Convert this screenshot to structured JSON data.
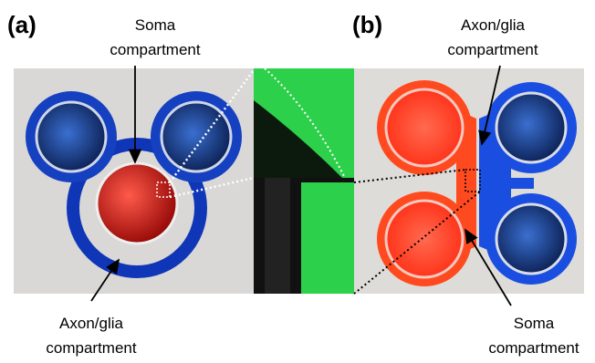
{
  "panels": [
    {
      "label": "(a)",
      "annotations": [
        {
          "lines": [
            "Soma",
            "compartment"
          ]
        },
        {
          "lines": [
            "Axon/glia",
            "compartment"
          ]
        }
      ]
    },
    {
      "label": "(b)",
      "annotations": [
        {
          "lines": [
            "Axon/glia",
            "compartment"
          ]
        },
        {
          "lines": [
            "Soma",
            "compartment"
          ]
        }
      ]
    }
  ]
}
